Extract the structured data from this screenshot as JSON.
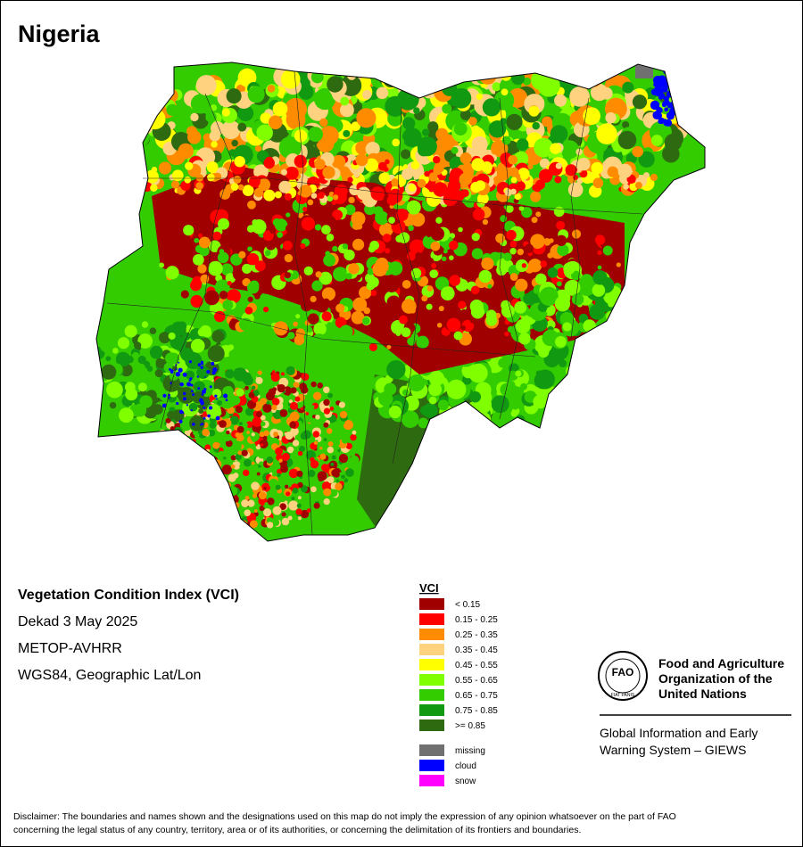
{
  "title": "Nigeria",
  "info": {
    "product": "Vegetation Condition Index (VCI)",
    "period": "Dekad 3 May 2025",
    "sensor": "METOP-AVHRR",
    "projection": "WGS84, Geographic Lat/Lon"
  },
  "legend": {
    "title": "VCI",
    "items": [
      {
        "label": "< 0.15",
        "color": "#a00000"
      },
      {
        "label": "0.15 - 0.25",
        "color": "#ff0000"
      },
      {
        "label": "0.25 - 0.35",
        "color": "#ff8c00"
      },
      {
        "label": "0.35 - 0.45",
        "color": "#ffd27f"
      },
      {
        "label": "0.45 - 0.55",
        "color": "#ffff00"
      },
      {
        "label": "0.55 - 0.65",
        "color": "#80ff00"
      },
      {
        "label": "0.65 - 0.75",
        "color": "#33cc00"
      },
      {
        "label": "0.75 - 0.85",
        "color": "#119911"
      },
      {
        "label": ">= 0.85",
        "color": "#2e6b10"
      }
    ],
    "other": [
      {
        "label": "missing",
        "color": "#707070"
      },
      {
        "label": "cloud",
        "color": "#0000ff"
      },
      {
        "label": "snow",
        "color": "#ff00ff"
      }
    ]
  },
  "logo": {
    "acronym": "FAO",
    "motto": "FIAT PANIS",
    "organization": [
      "Food and Agriculture",
      "Organization of the",
      "United Nations"
    ],
    "system": [
      "Global Information and Early",
      "Warning System – GIEWS"
    ]
  },
  "disclaimer": [
    "Disclaimer: The boundaries and names shown and the designations used on this map do not imply the expression of any opinion whatsoever on the part of FAO",
    "concerning the legal status of any country, territory, area or of its authorities, or concerning the delimitation of its frontiers and boundaries."
  ]
}
